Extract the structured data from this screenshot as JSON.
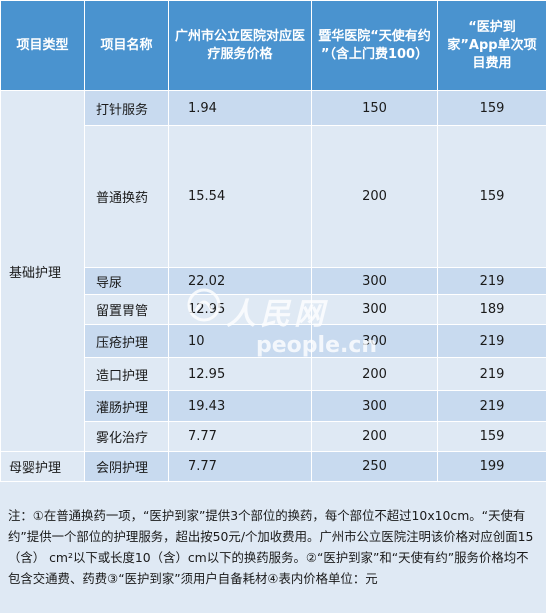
{
  "headers": [
    "项目类型",
    "项目名称",
    "广州市公立医院对应医疗服务价格",
    "暨华医院“天使有约 ”（含上门费100）",
    "“医护到家”App单次项目费用"
  ],
  "groups": [
    {
      "type": "基础护理",
      "rows": [
        {
          "name": "打针服务",
          "public_price": "1.94",
          "tianshi": "150",
          "yihu": "159"
        },
        {
          "name": "普通换药",
          "public_price": "15.54",
          "tianshi": "200",
          "yihu": "159"
        },
        {
          "name": "导尿",
          "public_price": "22.02",
          "tianshi": "300",
          "yihu": "219"
        },
        {
          "name": "留置胃管",
          "public_price": "12.95",
          "tianshi": "300",
          "yihu": "189"
        },
        {
          "name": "压疮护理",
          "public_price": "10",
          "tianshi": "300",
          "yihu": "219"
        },
        {
          "name": "造口护理",
          "public_price": "12.95",
          "tianshi": "200",
          "yihu": "219"
        },
        {
          "name": "灌肠护理",
          "public_price": "19.43",
          "tianshi": "300",
          "yihu": "219"
        },
        {
          "name": "雾化治疗",
          "public_price": "7.77",
          "tianshi": "200",
          "yihu": "159"
        }
      ]
    },
    {
      "type": "母婴护理",
      "rows": [
        {
          "name": "会阴护理",
          "public_price": "7.77",
          "tianshi": "250",
          "yihu": "199"
        }
      ]
    }
  ],
  "note": "注：①在普通换药一项，“医护到家”提供3个部位的换药，每个部位不超过10x10cm。“天使有约”提供一个部位的护理服务，超出按50元/个加收费用。广州市公立医院注明该价格对应创面15（含） cm²以下或长度10（含）cm以下的换药服务。②“医护到家”和“天使有约”服务价格均不包含交通费、药费③“医护到家”须用户自备耗材④表内价格单位：元",
  "watermark": {
    "cn": "人民网",
    "en": "people.cn"
  },
  "colors": {
    "header_bg": "#4a93cf",
    "row_dark": "#c8daef",
    "row_light": "#dfe9f4"
  }
}
